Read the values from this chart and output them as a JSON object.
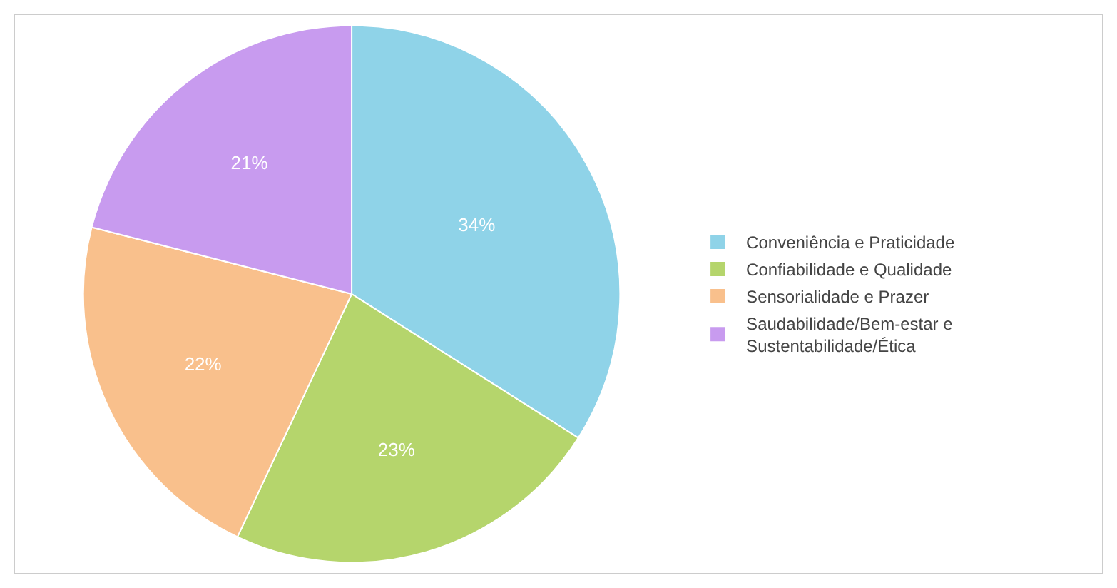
{
  "chart_data": {
    "type": "pie",
    "categories": [
      "Conveniência e Praticidade",
      "Confiabilidade e Qualidade",
      "Sensorialidade e Prazer",
      "Saudabilidade/Bem-estar e Sustentabilidade/Ética"
    ],
    "values": [
      34,
      23,
      22,
      21
    ],
    "value_labels": [
      "34%",
      "23%",
      "22%",
      "21%"
    ],
    "colors": [
      "#8fd3e8",
      "#b5d56c",
      "#f9c08c",
      "#c89bef"
    ],
    "legend": "right"
  }
}
